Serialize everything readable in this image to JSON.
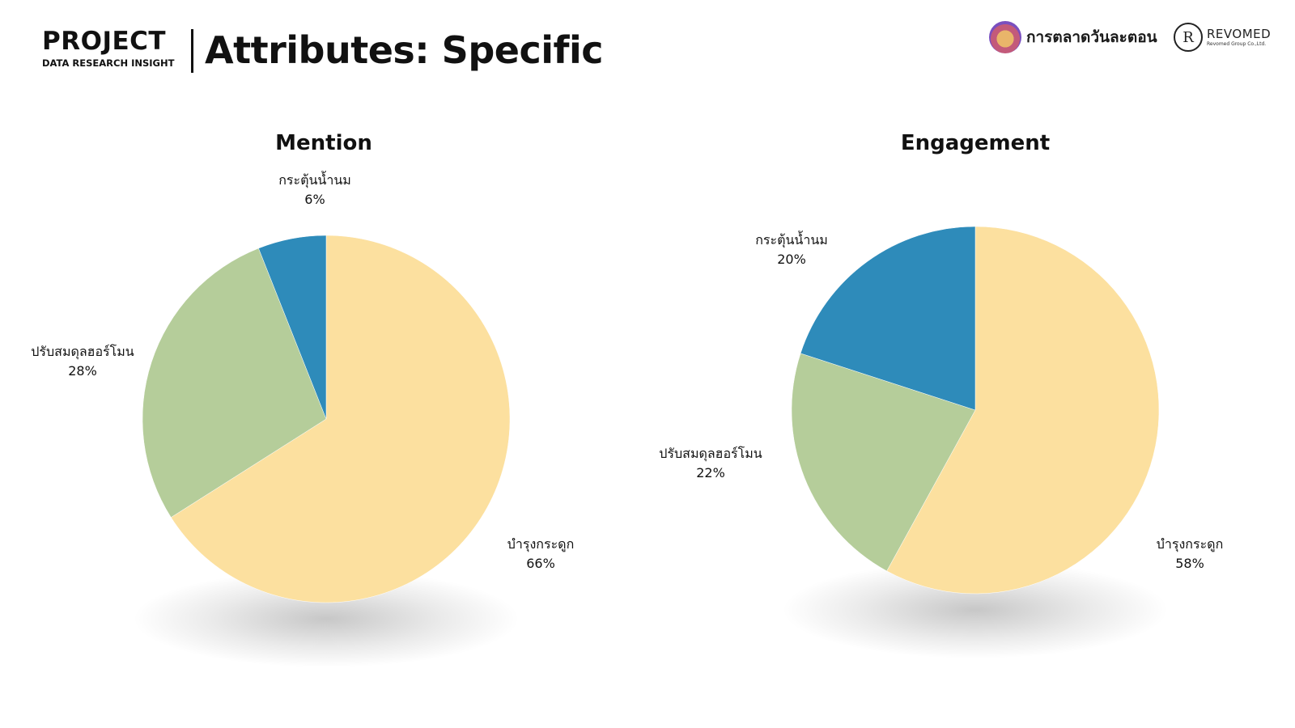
{
  "header": {
    "brand_title": "PROJECT",
    "brand_subtitle": "DATA RESEARCH INSIGHT",
    "page_title": "Attributes: Specific",
    "logo_left_text": "การตลาดวันละตอน",
    "logo_right_mark": "R",
    "logo_right_name": "REVOMED",
    "logo_right_sub": "Revomed Group Co.,Ltd."
  },
  "colors": {
    "bone": "#FCE09F",
    "hormone": "#B5CD9A",
    "milk": "#2E8BBA"
  },
  "chart_data": [
    {
      "type": "pie",
      "title": "Mention",
      "slices": [
        {
          "label": "บำรุงกระดูก",
          "value": 66,
          "pct_text": "66%",
          "color": "#FCE09F"
        },
        {
          "label": "ปรับสมดุลฮอร์โมน",
          "value": 28,
          "pct_text": "28%",
          "color": "#B5CD9A"
        },
        {
          "label": "กระตุ้นน้ำนม",
          "value": 6,
          "pct_text": "6%",
          "color": "#2E8BBA"
        }
      ]
    },
    {
      "type": "pie",
      "title": "Engagement",
      "slices": [
        {
          "label": "บำรุงกระดูก",
          "value": 58,
          "pct_text": "58%",
          "color": "#FCE09F"
        },
        {
          "label": "ปรับสมดุลฮอร์โมน",
          "value": 22,
          "pct_text": "22%",
          "color": "#B5CD9A"
        },
        {
          "label": "กระตุ้นน้ำนม",
          "value": 20,
          "pct_text": "20%",
          "color": "#2E8BBA"
        }
      ]
    }
  ]
}
